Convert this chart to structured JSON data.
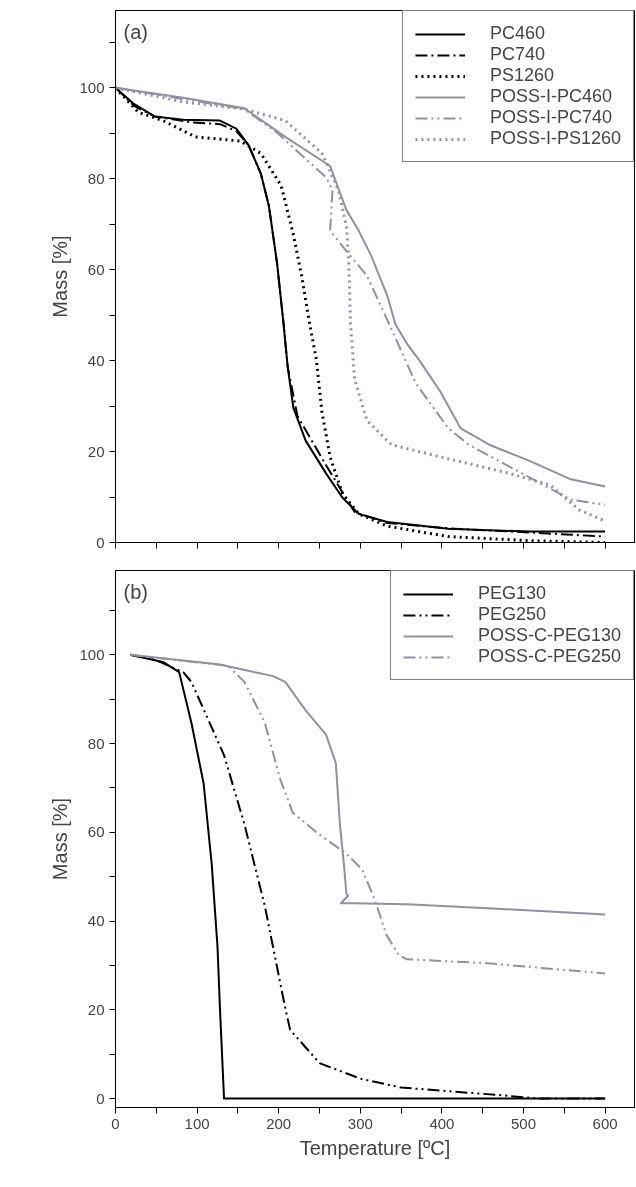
{
  "chart_data": [
    {
      "type": "line",
      "annotations": [
        "(a)"
      ],
      "ylabel": "Mass [%]",
      "xlim": [
        0,
        636
      ],
      "ylim": [
        0,
        117
      ],
      "xticks": [
        {
          "value": 0,
          "label": null
        },
        {
          "value": 50,
          "label": null
        },
        {
          "value": 100,
          "label": null
        },
        {
          "value": 150,
          "label": null
        },
        {
          "value": 200,
          "label": null
        },
        {
          "value": 250,
          "label": null
        },
        {
          "value": 300,
          "label": null
        },
        {
          "value": 350,
          "label": null
        },
        {
          "value": 400,
          "label": null
        },
        {
          "value": 450,
          "label": null
        },
        {
          "value": 500,
          "label": null
        },
        {
          "value": 550,
          "label": null
        },
        {
          "value": 600,
          "label": null
        }
      ],
      "yticks": [
        0,
        {
          "value": 10,
          "label": null
        },
        20,
        {
          "value": 30,
          "label": null
        },
        40,
        {
          "value": 50,
          "label": null
        },
        60,
        {
          "value": 70,
          "label": null
        },
        80,
        {
          "value": 90,
          "label": null
        },
        100,
        {
          "value": 110,
          "label": null
        }
      ],
      "tick_labels": "y",
      "grid": false,
      "legend": "top right",
      "marker": "none",
      "series": [
        {
          "name": "PC460",
          "color": "#000000",
          "line_style": "solid",
          "x": [
            0,
            23,
            48,
            83,
            128,
            148,
            163,
            178,
            188,
            198,
            206,
            211,
            218,
            233,
            258,
            278,
            298,
            333,
            408,
            508,
            600
          ],
          "values": [
            100,
            96.4,
            93.7,
            93.0,
            92.8,
            91,
            87.4,
            81.2,
            74,
            61.4,
            48,
            38.6,
            29.6,
            22.4,
            15.2,
            9.9,
            6.3,
            4.5,
            3,
            2.4,
            2.4
          ]
        },
        {
          "name": "PC740",
          "color": "#000000",
          "line_style": "dashdot",
          "x": [
            0,
            23,
            48,
            93,
            128,
            148,
            163,
            178,
            188,
            198,
            206,
            211,
            223,
            258,
            293,
            333,
            408,
            508,
            600
          ],
          "values": [
            100,
            96.0,
            93.7,
            92.4,
            92,
            90.5,
            87.4,
            81.2,
            74,
            61.4,
            48,
            38.6,
            27.8,
            17,
            6.7,
            4.3,
            3.1,
            2.2,
            1.3
          ]
        },
        {
          "name": "PS1260",
          "color": "#000000",
          "line_style": "dotted",
          "x": [
            0,
            28,
            58,
            98,
            153,
            178,
            203,
            218,
            228,
            238,
            246,
            253,
            263,
            278,
            298,
            333,
            408,
            508,
            600
          ],
          "values": [
            100,
            94.6,
            92.8,
            89.2,
            88.3,
            85.6,
            78.5,
            67.7,
            58.7,
            48,
            40.4,
            28.7,
            18.8,
            10.8,
            6.3,
            3.6,
            1.3,
            0.4,
            0
          ]
        },
        {
          "name": "POSS-I-PC460",
          "color": "#8e90a8",
          "line_style": "solid",
          "x": [
            0,
            83,
            158,
            208,
            263,
            283,
            298,
            313,
            333,
            343,
            358,
            373,
            398,
            423,
            458,
            508,
            558,
            600
          ],
          "values": [
            100,
            97.8,
            95.5,
            89.2,
            82.8,
            73.1,
            68.6,
            63.2,
            54.3,
            48,
            43.5,
            39.9,
            33.2,
            25.1,
            21.5,
            17.9,
            13.9,
            12.3
          ]
        },
        {
          "name": "POSS-I-PC740",
          "color": "#8e90a8",
          "line_style": "dashdotdot",
          "x": [
            0,
            158,
            198,
            258,
            266,
            263,
            283,
            308,
            338,
            368,
            408,
            433,
            498,
            558,
            600
          ],
          "values": [
            100,
            95.3,
            90.1,
            80.3,
            77.6,
            68.6,
            64.1,
            58.7,
            47,
            35,
            25.1,
            21.5,
            15.2,
            9.4,
            8.3
          ]
        },
        {
          "name": "POSS-I-PS1260",
          "color": "#8e90a8",
          "line_style": "dotted",
          "x": [
            0,
            83,
            158,
            208,
            253,
            273,
            283,
            286,
            288,
            291,
            293,
            308,
            338,
            408,
            483,
            533,
            568,
            600
          ],
          "values": [
            100,
            96.9,
            95.3,
            92.8,
            85.6,
            77.6,
            69.5,
            61.4,
            48,
            40.8,
            35.9,
            26.9,
            21.5,
            18.4,
            15.2,
            12.6,
            7.2,
            4.7
          ]
        }
      ]
    },
    {
      "type": "line",
      "annotations": [
        "(b)"
      ],
      "xlabel": "Temperature [ºC]",
      "ylabel": "Mass [%]",
      "xlim": [
        0,
        636
      ],
      "ylim": [
        -2,
        119
      ],
      "xticks": [
        0,
        {
          "value": 50,
          "label": null
        },
        100,
        {
          "value": 150,
          "label": null
        },
        200,
        {
          "value": 250,
          "label": null
        },
        300,
        {
          "value": 350,
          "label": null
        },
        400,
        {
          "value": 450,
          "label": null
        },
        500,
        {
          "value": 550,
          "label": null
        },
        600
      ],
      "yticks": [
        0,
        {
          "value": 10,
          "label": null
        },
        20,
        {
          "value": 30,
          "label": null
        },
        40,
        {
          "value": 50,
          "label": null
        },
        60,
        {
          "value": 70,
          "label": null
        },
        80,
        {
          "value": 90,
          "label": null
        },
        100,
        {
          "value": 110,
          "label": null
        }
      ],
      "grid": false,
      "legend": "top right",
      "marker": "none",
      "series": [
        {
          "name": "PEG130",
          "color": "#000000",
          "line_style": "solid",
          "x": [
            18,
            58,
            78,
            93,
            108,
            118,
            125,
            128,
            133,
            600
          ],
          "values": [
            100,
            98.4,
            96.1,
            84.7,
            71,
            52.6,
            34.2,
            20.4,
            0,
            0
          ]
        },
        {
          "name": "PEG250",
          "color": "#000000",
          "line_style": "dashdotdot",
          "x": [
            18,
            48,
            83,
            93,
            133,
            158,
            183,
            208,
            214,
            250,
            300,
            350,
            420,
            470,
            520,
            600
          ],
          "values": [
            100,
            98.9,
            96.1,
            93.9,
            77.4,
            61.8,
            43.4,
            20.4,
            15.5,
            8,
            4.5,
            2.5,
            1.5,
            0.8,
            0,
            0
          ]
        },
        {
          "name": "POSS-C-PEG130",
          "color": "#8e90a8",
          "line_style": "solid",
          "x": [
            18,
            128,
            193,
            208,
            233,
            258,
            270,
            275,
            280,
            283,
            285,
            276,
            290,
            357,
            456,
            600
          ],
          "values": [
            100,
            97.8,
            95.2,
            93.9,
            87.5,
            82,
            75.6,
            61.8,
            52.6,
            46.1,
            45.7,
            44,
            44,
            43.8,
            42.9,
            41.5
          ]
        },
        {
          "name": "POSS-C-PEG250",
          "color": "#8e90a8",
          "line_style": "dashdotdot",
          "x": [
            18,
            138,
            158,
            183,
            202,
            217,
            247,
            282,
            302,
            317,
            332,
            347,
            357,
            456,
            600
          ],
          "values": [
            100,
            97.5,
            93.9,
            84.7,
            71.9,
            64.5,
            59.9,
            55.3,
            51.7,
            45.2,
            36.9,
            32.4,
            31.4,
            30.5,
            28.2
          ]
        }
      ]
    }
  ]
}
